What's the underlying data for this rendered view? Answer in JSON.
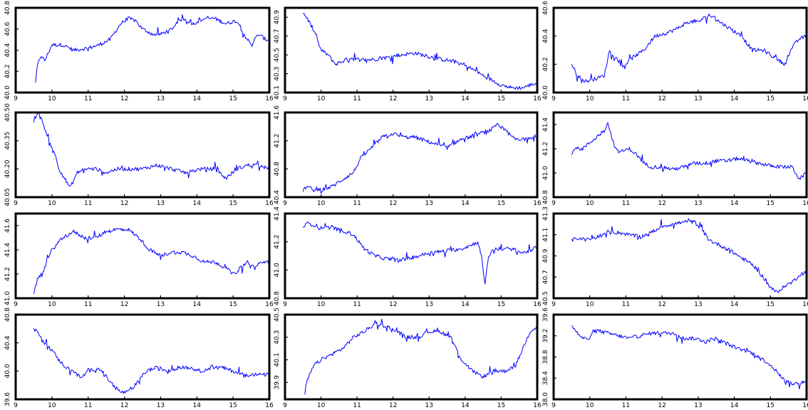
{
  "chart_data": [
    {
      "type": "line",
      "x_ticks": [
        "9",
        "10",
        "11",
        "12",
        "13",
        "14",
        "15",
        "16"
      ],
      "xlim": [
        9,
        16
      ],
      "y_ticks": [
        "40.0",
        "40.2",
        "40.4",
        "40.6",
        "40.8"
      ],
      "ylim": [
        40.0,
        40.8
      ],
      "color": "#0000ff",
      "x": [
        9.55,
        9.6,
        9.7,
        9.8,
        10.0,
        10.3,
        10.6,
        11.0,
        11.3,
        11.6,
        11.9,
        12.1,
        12.3,
        12.5,
        12.8,
        13.0,
        13.3,
        13.6,
        13.9,
        14.2,
        14.5,
        14.8,
        15.1,
        15.3,
        15.5,
        15.7,
        15.9,
        16.0
      ],
      "y": [
        40.1,
        40.25,
        40.35,
        40.3,
        40.45,
        40.45,
        40.4,
        40.42,
        40.45,
        40.5,
        40.65,
        40.7,
        40.68,
        40.6,
        40.55,
        40.55,
        40.6,
        40.7,
        40.65,
        40.7,
        40.7,
        40.65,
        40.68,
        40.55,
        40.45,
        40.55,
        40.5,
        40.5
      ]
    },
    {
      "type": "line",
      "x_ticks": [
        "9",
        "10",
        "11",
        "12",
        "13",
        "14",
        "15",
        "16"
      ],
      "xlim": [
        9,
        16
      ],
      "y_ticks": [
        "40.1",
        "40.3",
        "40.5",
        "40.7",
        "40.9"
      ],
      "ylim": [
        40.1,
        41.0
      ],
      "color": "#0000ff",
      "x": [
        9.5,
        9.6,
        9.75,
        9.9,
        10.0,
        10.2,
        10.4,
        10.7,
        11.0,
        11.4,
        11.8,
        12.2,
        12.6,
        13.0,
        13.4,
        13.8,
        14.2,
        14.5,
        14.8,
        15.0,
        15.3,
        15.6,
        15.8,
        16.0
      ],
      "y": [
        40.95,
        40.9,
        40.8,
        40.65,
        40.55,
        40.5,
        40.4,
        40.45,
        40.45,
        40.45,
        40.47,
        40.5,
        40.52,
        40.48,
        40.45,
        40.42,
        40.35,
        40.28,
        40.22,
        40.18,
        40.15,
        40.15,
        40.18,
        40.2
      ]
    },
    {
      "type": "line",
      "x_ticks": [
        "9",
        "10",
        "11",
        "12",
        "13",
        "14",
        "15",
        "16"
      ],
      "xlim": [
        9,
        16
      ],
      "y_ticks": [
        "40.0",
        "40.2",
        "40.4",
        "40.6"
      ],
      "ylim": [
        40.0,
        40.6
      ],
      "color": "#0000ff",
      "x": [
        9.5,
        9.6,
        9.7,
        9.9,
        10.2,
        10.4,
        10.55,
        10.7,
        10.9,
        11.2,
        11.5,
        11.8,
        12.1,
        12.4,
        12.7,
        13.0,
        13.3,
        13.6,
        13.9,
        14.2,
        14.5,
        14.8,
        15.1,
        15.4,
        15.6,
        15.8,
        16.0
      ],
      "y": [
        40.2,
        40.15,
        40.1,
        40.08,
        40.1,
        40.12,
        40.3,
        40.25,
        40.18,
        40.25,
        40.3,
        40.4,
        40.42,
        40.45,
        40.5,
        40.5,
        40.55,
        40.5,
        40.45,
        40.4,
        40.3,
        40.3,
        40.25,
        40.2,
        40.32,
        40.38,
        40.4
      ]
    },
    {
      "type": "line",
      "x_ticks": [
        "9",
        "10",
        "11",
        "12",
        "13",
        "14",
        "15",
        "16"
      ],
      "xlim": [
        9,
        16
      ],
      "y_ticks": [
        "40.05",
        "40.20",
        "40.35",
        "40.50"
      ],
      "ylim": [
        40.05,
        40.5
      ],
      "color": "#0000ff",
      "x": [
        9.5,
        9.6,
        9.75,
        9.9,
        10.05,
        10.2,
        10.35,
        10.5,
        10.7,
        10.9,
        11.2,
        11.5,
        11.8,
        12.1,
        12.5,
        12.9,
        13.3,
        13.7,
        14.1,
        14.5,
        14.8,
        15.1,
        15.4,
        15.7,
        16.0
      ],
      "y": [
        40.45,
        40.5,
        40.45,
        40.35,
        40.3,
        40.2,
        40.15,
        40.1,
        40.18,
        40.2,
        40.2,
        40.18,
        40.2,
        40.2,
        40.2,
        40.22,
        40.2,
        40.18,
        40.2,
        40.2,
        40.15,
        40.2,
        40.22,
        40.22,
        40.2
      ]
    },
    {
      "type": "line",
      "x_ticks": [
        "9",
        "10",
        "11",
        "12",
        "13",
        "14",
        "15",
        "16"
      ],
      "xlim": [
        9,
        16
      ],
      "y_ticks": [
        "40.4",
        "40.8",
        "41.2",
        "41.6"
      ],
      "ylim": [
        40.4,
        41.6
      ],
      "color": "#0000ff",
      "x": [
        9.5,
        9.6,
        9.8,
        10.0,
        10.3,
        10.6,
        10.9,
        11.1,
        11.4,
        11.7,
        12.0,
        12.3,
        12.6,
        12.9,
        13.2,
        13.5,
        13.8,
        14.1,
        14.4,
        14.7,
        14.9,
        15.1,
        15.3,
        15.5,
        15.7,
        16.0
      ],
      "y": [
        40.5,
        40.55,
        40.5,
        40.5,
        40.55,
        40.65,
        40.75,
        40.95,
        41.1,
        41.25,
        41.3,
        41.25,
        41.25,
        41.2,
        41.15,
        41.1,
        41.2,
        41.25,
        41.3,
        41.35,
        41.42,
        41.35,
        41.25,
        41.2,
        41.25,
        41.25
      ]
    },
    {
      "type": "line",
      "x_ticks": [
        "9",
        "10",
        "11",
        "12",
        "13",
        "14",
        "15",
        "16"
      ],
      "xlim": [
        9,
        16
      ],
      "y_ticks": [
        "40.8",
        "41.0",
        "41.2",
        "41.4"
      ],
      "ylim": [
        40.8,
        41.5
      ],
      "color": "#0000ff",
      "x": [
        9.5,
        9.6,
        9.8,
        10.0,
        10.2,
        10.4,
        10.5,
        10.6,
        10.75,
        10.9,
        11.1,
        11.3,
        11.5,
        11.7,
        12.0,
        12.3,
        12.6,
        12.9,
        13.2,
        13.5,
        13.8,
        14.1,
        14.4,
        14.7,
        15.0,
        15.3,
        15.6,
        15.8,
        16.0
      ],
      "y": [
        41.15,
        41.2,
        41.2,
        41.25,
        41.3,
        41.35,
        41.42,
        41.3,
        41.18,
        41.18,
        41.2,
        41.15,
        41.08,
        41.05,
        41.05,
        41.03,
        41.05,
        41.08,
        41.08,
        41.1,
        41.1,
        41.12,
        41.1,
        41.08,
        41.06,
        41.05,
        41.05,
        40.95,
        41.0
      ]
    },
    {
      "type": "line",
      "x_ticks": [
        "9",
        "10",
        "11",
        "12",
        "13",
        "14",
        "15",
        "16"
      ],
      "xlim": [
        9,
        16
      ],
      "y_ticks": [
        "41.0",
        "41.2",
        "41.4",
        "41.6"
      ],
      "ylim": [
        41.0,
        41.7
      ],
      "color": "#0000ff",
      "x": [
        9.5,
        9.6,
        9.8,
        10.0,
        10.3,
        10.6,
        10.9,
        11.2,
        11.5,
        11.8,
        12.1,
        12.4,
        12.7,
        13.0,
        13.3,
        13.6,
        13.9,
        14.2,
        14.5,
        14.8,
        15.0,
        15.2,
        15.4,
        15.6,
        15.8,
        16.0
      ],
      "y": [
        41.05,
        41.15,
        41.25,
        41.4,
        41.5,
        41.55,
        41.5,
        41.5,
        41.55,
        41.57,
        41.57,
        41.5,
        41.4,
        41.35,
        41.38,
        41.38,
        41.35,
        41.3,
        41.3,
        41.25,
        41.2,
        41.25,
        41.3,
        41.25,
        41.3,
        41.3
      ]
    },
    {
      "type": "line",
      "x_ticks": [
        "9",
        "10",
        "11",
        "12",
        "13",
        "14",
        "15",
        "16"
      ],
      "xlim": [
        9,
        16
      ],
      "y_ticks": [
        "40.8",
        "41.0",
        "41.2",
        "41.4"
      ],
      "ylim": [
        40.8,
        41.4
      ],
      "color": "#0000ff",
      "x": [
        9.5,
        9.6,
        9.8,
        10.0,
        10.3,
        10.6,
        10.9,
        11.2,
        11.5,
        11.8,
        12.1,
        12.4,
        12.7,
        13.0,
        13.3,
        13.6,
        13.9,
        14.2,
        14.35,
        14.45,
        14.55,
        14.65,
        14.8,
        15.0,
        15.3,
        15.6,
        15.8,
        16.0
      ],
      "y": [
        41.3,
        41.33,
        41.32,
        41.3,
        41.3,
        41.28,
        41.25,
        41.15,
        41.1,
        41.08,
        41.07,
        41.08,
        41.1,
        41.12,
        41.13,
        41.14,
        41.15,
        41.18,
        41.2,
        41.1,
        40.9,
        41.1,
        41.15,
        41.15,
        41.15,
        41.12,
        41.14,
        41.16
      ]
    },
    {
      "type": "line",
      "x_ticks": [
        "9",
        "10",
        "11",
        "12",
        "13",
        "14",
        "15",
        "16"
      ],
      "xlim": [
        9,
        16
      ],
      "y_ticks": [
        "40.5",
        "40.7",
        "40.9",
        "41.1",
        "41.3"
      ],
      "ylim": [
        40.5,
        41.3
      ],
      "color": "#0000ff",
      "x": [
        9.5,
        9.7,
        9.9,
        10.2,
        10.5,
        10.8,
        11.1,
        11.4,
        11.7,
        12.0,
        12.3,
        12.6,
        12.9,
        13.1,
        13.3,
        13.6,
        13.9,
        14.2,
        14.5,
        14.8,
        15.0,
        15.2,
        15.4,
        15.6,
        15.8,
        16.0
      ],
      "y": [
        41.05,
        41.07,
        41.05,
        41.08,
        41.12,
        41.12,
        41.1,
        41.08,
        41.12,
        41.18,
        41.2,
        41.22,
        41.22,
        41.15,
        41.05,
        41.0,
        40.95,
        40.88,
        40.82,
        40.7,
        40.6,
        40.55,
        40.62,
        40.65,
        40.72,
        40.75
      ]
    },
    {
      "type": "line",
      "x_ticks": [
        "9",
        "10",
        "11",
        "12",
        "13",
        "14",
        "15",
        "16"
      ],
      "xlim": [
        9,
        16
      ],
      "y_ticks": [
        "39.6",
        "40.0",
        "40.4",
        "40.8"
      ],
      "ylim": [
        39.6,
        40.8
      ],
      "color": "#0000ff",
      "x": [
        9.5,
        9.6,
        9.8,
        10.0,
        10.2,
        10.4,
        10.6,
        10.8,
        11.0,
        11.3,
        11.6,
        11.9,
        12.1,
        12.3,
        12.6,
        12.9,
        13.2,
        13.5,
        13.8,
        14.1,
        14.4,
        14.7,
        15.0,
        15.3,
        15.6,
        15.9,
        16.0
      ],
      "y": [
        40.6,
        40.55,
        40.4,
        40.3,
        40.15,
        40.05,
        40.0,
        39.9,
        40.0,
        40.05,
        39.85,
        39.7,
        39.7,
        39.8,
        40.0,
        40.05,
        40.0,
        40.05,
        40.05,
        40.0,
        40.05,
        40.05,
        40.0,
        39.95,
        39.95,
        39.95,
        39.95
      ]
    },
    {
      "type": "line",
      "x_ticks": [
        "9",
        "10",
        "11",
        "12",
        "13",
        "14",
        "15",
        "16"
      ],
      "xlim": [
        9,
        16
      ],
      "y_ticks": [
        "39.9",
        "40.1",
        "40.3",
        "40.5"
      ],
      "ylim": [
        39.75,
        40.5
      ],
      "color": "#0000ff",
      "x": [
        9.55,
        9.6,
        9.8,
        10.0,
        10.3,
        10.6,
        10.9,
        11.2,
        11.5,
        11.8,
        12.1,
        12.4,
        12.7,
        13.0,
        13.3,
        13.6,
        13.9,
        14.2,
        14.5,
        14.8,
        15.1,
        15.4,
        15.6,
        15.8,
        16.0
      ],
      "y": [
        39.8,
        39.9,
        40.05,
        40.1,
        40.15,
        40.2,
        40.3,
        40.35,
        40.42,
        40.4,
        40.35,
        40.3,
        40.3,
        40.35,
        40.35,
        40.3,
        40.1,
        40.0,
        39.95,
        40.0,
        40.0,
        40.05,
        40.2,
        40.35,
        40.4
      ]
    },
    {
      "type": "line",
      "x_ticks": [
        "9",
        "10",
        "11",
        "12",
        "13",
        "14",
        "15",
        "16"
      ],
      "xlim": [
        9,
        16
      ],
      "y_ticks": [
        "38.0",
        "38.4",
        "38.8",
        "39.2",
        "39.6"
      ],
      "ylim": [
        38.0,
        39.6
      ],
      "color": "#0000ff",
      "x": [
        9.5,
        9.6,
        9.8,
        10.0,
        10.2,
        10.5,
        10.8,
        11.1,
        11.4,
        11.7,
        12.0,
        12.3,
        12.6,
        12.9,
        13.2,
        13.5,
        13.8,
        14.1,
        14.4,
        14.7,
        15.0,
        15.2,
        15.4,
        15.6,
        15.8,
        16.0
      ],
      "y": [
        39.4,
        39.3,
        39.15,
        39.15,
        39.3,
        39.25,
        39.2,
        39.15,
        39.2,
        39.25,
        39.25,
        39.25,
        39.15,
        39.15,
        39.1,
        39.15,
        39.05,
        38.95,
        38.9,
        38.8,
        38.65,
        38.5,
        38.35,
        38.3,
        38.3,
        38.35
      ]
    }
  ]
}
